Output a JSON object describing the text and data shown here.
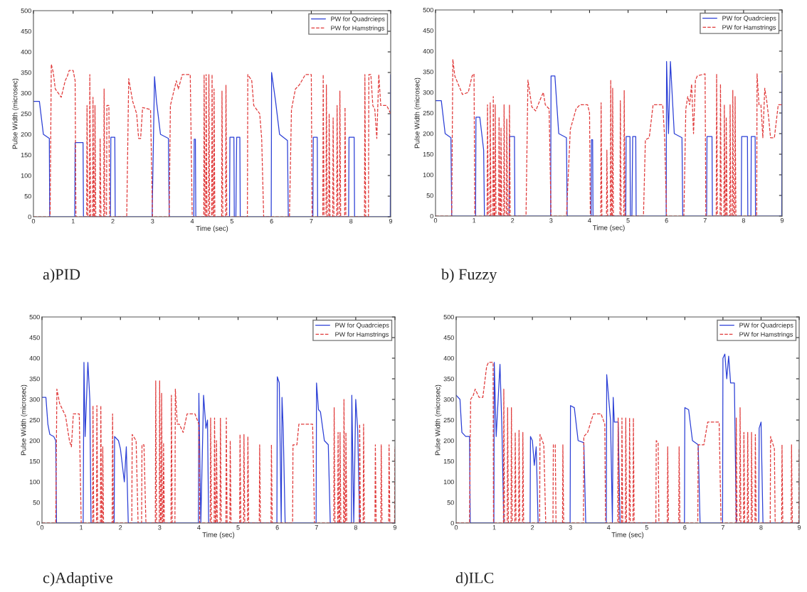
{
  "chart_data": [
    {
      "type": "line",
      "title": "a)PID",
      "xlabel": "Time (sec)",
      "ylabel": "Pulse Width (microsec)",
      "xlim": [
        0,
        9
      ],
      "ylim": [
        0,
        500
      ],
      "xticks": [
        0,
        1,
        2,
        3,
        4,
        5,
        6,
        7,
        8,
        9
      ],
      "yticks": [
        0,
        50,
        100,
        150,
        200,
        250,
        300,
        350,
        400,
        450,
        500
      ],
      "grid": false,
      "legend": "top right",
      "series": [
        {
          "name": "PW for Quadrcieps",
          "color": "#2b3fd6",
          "line_style": "solid",
          "x": [
            0,
            0.15,
            0.25,
            0.4,
            0.41,
            1.04,
            1.05,
            1.25,
            1.26,
            1.94,
            1.95,
            2.05,
            2.06,
            2.99,
            3.05,
            3.1,
            3.2,
            3.4,
            3.42,
            4.04,
            4.05,
            4.08,
            4.09,
            4.94,
            4.95,
            5.05,
            5.06,
            5.1,
            5.12,
            5.2,
            5.21,
            5.99,
            6.0,
            6.1,
            6.2,
            6.4,
            6.42,
            7.04,
            7.05,
            7.15,
            7.16,
            7.94,
            7.95,
            8.08,
            8.09,
            8.99,
            9.0
          ],
          "values": [
            280,
            280,
            200,
            190,
            0,
            0,
            180,
            180,
            0,
            0,
            193,
            193,
            0,
            0,
            340,
            280,
            200,
            190,
            0,
            0,
            188,
            188,
            0,
            0,
            193,
            193,
            0,
            0,
            193,
            193,
            0,
            0,
            350,
            280,
            200,
            185,
            0,
            0,
            193,
            193,
            0,
            0,
            193,
            193,
            0,
            0,
            345
          ]
        },
        {
          "name": "PW for Hamstrings",
          "color": "#e03a3a",
          "line_style": "dashed",
          "x": [
            0,
            0.42,
            0.45,
            0.5,
            0.55,
            0.7,
            0.8,
            0.85,
            0.9,
            1.0,
            1.05,
            1.07,
            1.34,
            1.35,
            1.37,
            1.41,
            1.42,
            1.44,
            1.49,
            1.5,
            1.52,
            1.54,
            1.55,
            1.57,
            1.67,
            1.68,
            1.7,
            1.77,
            1.78,
            1.8,
            1.84,
            1.85,
            1.9,
            1.92,
            2.35,
            2.4,
            2.5,
            2.6,
            2.65,
            2.7,
            2.75,
            2.95,
            3.0,
            3.42,
            3.45,
            3.6,
            3.65,
            3.75,
            3.95,
            4.0,
            4.29,
            4.3,
            4.32,
            4.34,
            4.35,
            4.37,
            4.41,
            4.42,
            4.44,
            4.49,
            4.5,
            4.52,
            4.54,
            4.55,
            4.57,
            4.74,
            4.75,
            4.77,
            4.84,
            4.85,
            4.87,
            5.39,
            5.4,
            5.5,
            5.55,
            5.7,
            5.75,
            5.8,
            6.45,
            6.5,
            6.6,
            6.7,
            6.85,
            7.0,
            7.02,
            7.29,
            7.3,
            7.32,
            7.37,
            7.38,
            7.4,
            7.44,
            7.45,
            7.47,
            7.54,
            7.55,
            7.57,
            7.64,
            7.65,
            7.67,
            7.71,
            7.72,
            7.74,
            7.84,
            7.85,
            7.87,
            8.34,
            8.35,
            8.37,
            8.44,
            8.45,
            8.5,
            8.55,
            8.6,
            8.65,
            8.7,
            8.75,
            8.9,
            9.0
          ],
          "values": [
            0,
            0,
            370,
            350,
            310,
            290,
            330,
            340,
            355,
            355,
            330,
            0,
            0,
            270,
            0,
            0,
            345,
            0,
            0,
            290,
            0,
            0,
            270,
            0,
            0,
            190,
            0,
            0,
            310,
            0,
            0,
            270,
            270,
            0,
            0,
            335,
            280,
            250,
            190,
            190,
            265,
            260,
            0,
            0,
            270,
            330,
            310,
            345,
            345,
            0,
            0,
            345,
            0,
            0,
            345,
            0,
            0,
            345,
            0,
            0,
            345,
            0,
            0,
            310,
            0,
            0,
            305,
            0,
            0,
            320,
            0,
            0,
            345,
            330,
            270,
            250,
            190,
            0,
            0,
            260,
            310,
            320,
            345,
            345,
            0,
            0,
            345,
            0,
            0,
            320,
            0,
            0,
            250,
            0,
            0,
            240,
            0,
            0,
            270,
            0,
            0,
            305,
            0,
            0,
            265,
            0,
            0,
            345,
            0,
            0,
            345,
            345,
            270,
            260,
            190,
            345,
            270,
            270,
            250
          ]
        }
      ]
    },
    {
      "type": "line",
      "title": "b) Fuzzy",
      "xlabel": "Time (sec)",
      "ylabel": "Pulse Width (microsec)",
      "xlim": [
        0,
        9
      ],
      "ylim": [
        0,
        500
      ],
      "xticks": [
        0,
        1,
        2,
        3,
        4,
        5,
        6,
        7,
        8,
        9
      ],
      "yticks": [
        0,
        50,
        100,
        150,
        200,
        250,
        300,
        350,
        400,
        450,
        500
      ],
      "grid": false,
      "legend": "top right",
      "series": [
        {
          "name": "PW for Quadrcieps",
          "color": "#2b3fd6",
          "line_style": "solid",
          "x": [
            0,
            0.15,
            0.25,
            0.4,
            0.42,
            1.04,
            1.05,
            1.15,
            1.25,
            1.27,
            1.91,
            1.92,
            2.05,
            2.06,
            2.99,
            3.0,
            3.1,
            3.2,
            3.4,
            3.42,
            4.04,
            4.05,
            4.08,
            4.09,
            4.94,
            4.95,
            5.05,
            5.06,
            5.1,
            5.12,
            5.2,
            5.21,
            5.99,
            6.0,
            6.05,
            6.1,
            6.2,
            6.4,
            6.42,
            7.04,
            7.05,
            7.18,
            7.19,
            7.94,
            7.95,
            8.1,
            8.11,
            8.19,
            8.2,
            8.3,
            8.31,
            8.99,
            9.0
          ],
          "values": [
            280,
            280,
            200,
            190,
            0,
            0,
            240,
            240,
            160,
            0,
            0,
            193,
            193,
            0,
            0,
            340,
            340,
            200,
            190,
            0,
            0,
            185,
            185,
            0,
            0,
            193,
            193,
            0,
            0,
            193,
            193,
            0,
            0,
            375,
            200,
            375,
            200,
            190,
            0,
            0,
            193,
            193,
            0,
            0,
            193,
            193,
            0,
            0,
            193,
            193,
            0,
            0,
            345
          ]
        },
        {
          "name": "PW for Hamstrings",
          "color": "#e03a3a",
          "line_style": "dashed",
          "x": [
            0,
            0.42,
            0.45,
            0.5,
            0.7,
            0.85,
            0.95,
            1.0,
            1.02,
            1.34,
            1.35,
            1.37,
            1.41,
            1.42,
            1.44,
            1.49,
            1.5,
            1.52,
            1.54,
            1.55,
            1.57,
            1.64,
            1.65,
            1.67,
            1.69,
            1.7,
            1.72,
            1.77,
            1.78,
            1.8,
            1.84,
            1.85,
            1.87,
            1.91,
            1.92,
            1.94,
            2.35,
            2.4,
            2.5,
            2.6,
            2.75,
            2.8,
            2.85,
            2.95,
            3.0,
            3.4,
            3.5,
            3.65,
            3.75,
            3.95,
            4.0,
            4.02,
            4.29,
            4.3,
            4.32,
            4.44,
            4.45,
            4.47,
            4.54,
            4.55,
            4.57,
            4.59,
            4.6,
            4.62,
            4.79,
            4.8,
            4.82,
            4.89,
            4.9,
            4.92,
            5.4,
            5.45,
            5.55,
            5.65,
            5.9,
            5.95,
            6.0,
            6.45,
            6.5,
            6.55,
            6.6,
            6.65,
            6.7,
            6.75,
            6.8,
            7.0,
            7.02,
            7.29,
            7.3,
            7.32,
            7.39,
            7.4,
            7.42,
            7.49,
            7.5,
            7.52,
            7.54,
            7.55,
            7.57,
            7.64,
            7.65,
            7.67,
            7.71,
            7.72,
            7.74,
            7.77,
            7.78,
            7.8,
            8.34,
            8.35,
            8.4,
            8.45,
            8.5,
            8.55,
            8.6,
            8.65,
            8.7,
            8.8,
            8.9,
            9.0
          ],
          "values": [
            0,
            0,
            380,
            340,
            295,
            300,
            340,
            345,
            0,
            0,
            270,
            0,
            0,
            275,
            0,
            0,
            290,
            0,
            0,
            270,
            0,
            0,
            240,
            0,
            0,
            215,
            0,
            0,
            270,
            0,
            0,
            235,
            0,
            0,
            270,
            0,
            0,
            330,
            265,
            255,
            290,
            300,
            270,
            260,
            0,
            0,
            210,
            260,
            270,
            270,
            250,
            0,
            0,
            275,
            0,
            0,
            160,
            0,
            0,
            330,
            0,
            0,
            310,
            0,
            0,
            280,
            0,
            0,
            305,
            0,
            0,
            185,
            190,
            270,
            270,
            190,
            0,
            0,
            260,
            290,
            270,
            320,
            200,
            330,
            340,
            345,
            0,
            0,
            345,
            0,
            0,
            320,
            0,
            0,
            270,
            0,
            0,
            240,
            0,
            0,
            270,
            0,
            0,
            305,
            0,
            0,
            290,
            0,
            0,
            345,
            270,
            270,
            190,
            310,
            280,
            240,
            190,
            190,
            270,
            270
          ]
        }
      ]
    },
    {
      "type": "line",
      "title": "c)Adaptive",
      "xlabel": "Time (sec)",
      "ylabel": "Pulse Width (microsec)",
      "xlim": [
        0,
        9
      ],
      "ylim": [
        0,
        500
      ],
      "xticks": [
        0,
        1,
        2,
        3,
        4,
        5,
        6,
        7,
        8,
        9
      ],
      "yticks": [
        0,
        50,
        100,
        150,
        200,
        250,
        300,
        350,
        400,
        450,
        500
      ],
      "grid": false,
      "legend": "top right",
      "series": [
        {
          "name": "PW for Quadrcieps",
          "color": "#2b3fd6",
          "line_style": "solid",
          "x": [
            0,
            0.1,
            0.15,
            0.2,
            0.3,
            0.35,
            0.37,
            1.05,
            1.07,
            1.1,
            1.17,
            1.22,
            1.25,
            1.84,
            1.85,
            1.95,
            2.0,
            2.1,
            2.15,
            2.2,
            3.99,
            4.0,
            4.05,
            4.12,
            4.18,
            4.22,
            4.25,
            5.99,
            6.0,
            6.05,
            6.1,
            6.12,
            6.15,
            6.2,
            6.99,
            7.0,
            7.05,
            7.1,
            7.2,
            7.3,
            7.35,
            7.89,
            7.9,
            7.95,
            8.0,
            8.05,
            8.1,
            9.0
          ],
          "values": [
            305,
            305,
            240,
            215,
            210,
            200,
            0,
            0,
            390,
            210,
            390,
            300,
            0,
            0,
            210,
            200,
            180,
            100,
            185,
            0,
            0,
            315,
            0,
            310,
            230,
            250,
            0,
            0,
            355,
            340,
            0,
            305,
            230,
            0,
            0,
            340,
            275,
            270,
            200,
            190,
            0,
            0,
            310,
            0,
            300,
            225,
            0,
            0
          ]
        },
        {
          "name": "PW for Hamstrings",
          "color": "#e03a3a",
          "line_style": "dashed",
          "x": [
            0,
            0.35,
            0.38,
            0.45,
            0.6,
            0.7,
            0.75,
            0.8,
            0.95,
            1.0,
            1.29,
            1.3,
            1.32,
            1.39,
            1.4,
            1.42,
            1.49,
            1.5,
            1.52,
            1.54,
            1.55,
            1.57,
            1.79,
            1.8,
            1.82,
            2.29,
            2.3,
            2.4,
            2.45,
            2.54,
            2.55,
            2.6,
            2.65,
            2.89,
            2.9,
            2.92,
            2.99,
            3.0,
            3.02,
            3.04,
            3.05,
            3.07,
            3.09,
            3.1,
            3.12,
            3.29,
            3.3,
            3.32,
            3.39,
            3.4,
            3.45,
            3.5,
            3.6,
            3.7,
            3.9,
            4.0,
            4.02,
            4.29,
            4.3,
            4.32,
            4.39,
            4.4,
            4.42,
            4.44,
            4.45,
            4.47,
            4.54,
            4.55,
            4.57,
            4.69,
            4.7,
            4.72,
            4.79,
            4.8,
            4.82,
            5.04,
            5.05,
            5.07,
            5.14,
            5.15,
            5.17,
            5.24,
            5.25,
            5.27,
            5.54,
            5.55,
            5.57,
            5.84,
            5.85,
            5.87,
            6.39,
            6.4,
            6.5,
            6.55,
            6.9,
            6.95,
            7.44,
            7.45,
            7.47,
            7.54,
            7.55,
            7.57,
            7.59,
            7.6,
            7.62,
            7.69,
            7.7,
            7.72,
            7.74,
            7.75,
            7.77,
            8.09,
            8.1,
            8.12,
            8.19,
            8.2,
            8.22,
            8.49,
            8.5,
            8.52,
            8.64,
            8.65,
            8.67,
            8.84,
            8.85,
            8.87,
            8.99,
            9.0
          ],
          "values": [
            0,
            0,
            325,
            290,
            260,
            200,
            185,
            265,
            265,
            0,
            0,
            285,
            0,
            0,
            285,
            0,
            0,
            285,
            0,
            0,
            185,
            0,
            0,
            265,
            0,
            0,
            215,
            200,
            0,
            0,
            190,
            190,
            0,
            0,
            345,
            0,
            0,
            345,
            0,
            0,
            315,
            0,
            0,
            195,
            0,
            0,
            310,
            0,
            0,
            325,
            240,
            240,
            220,
            265,
            265,
            240,
            0,
            0,
            255,
            0,
            0,
            255,
            0,
            0,
            200,
            0,
            0,
            255,
            0,
            0,
            255,
            0,
            0,
            200,
            0,
            0,
            215,
            0,
            0,
            215,
            0,
            0,
            210,
            0,
            0,
            190,
            0,
            0,
            190,
            0,
            0,
            190,
            190,
            240,
            240,
            0,
            0,
            280,
            0,
            0,
            220,
            0,
            0,
            220,
            0,
            0,
            300,
            0,
            0,
            220,
            0,
            0,
            240,
            0,
            0,
            240,
            0,
            0,
            190,
            0,
            0,
            190,
            0,
            0,
            190,
            0,
            0,
            185
          ]
        }
      ]
    },
    {
      "type": "line",
      "title": "d)ILC",
      "xlabel": "Time (sec)",
      "ylabel": "Pulse Width (microsec)",
      "xlim": [
        0,
        9
      ],
      "ylim": [
        0,
        500
      ],
      "xticks": [
        0,
        1,
        2,
        3,
        4,
        5,
        6,
        7,
        8,
        9
      ],
      "yticks": [
        0,
        50,
        100,
        150,
        200,
        250,
        300,
        350,
        400,
        450,
        500
      ],
      "grid": false,
      "legend": "top right",
      "series": [
        {
          "name": "PW for Quadrcieps",
          "color": "#2b3fd6",
          "line_style": "solid",
          "x": [
            0,
            0.1,
            0.15,
            0.25,
            0.35,
            0.37,
            0.99,
            1.0,
            1.05,
            1.15,
            1.2,
            1.25,
            1.94,
            1.95,
            2.0,
            2.05,
            2.1,
            2.15,
            2.99,
            3.0,
            3.1,
            3.2,
            3.35,
            3.4,
            3.94,
            3.95,
            4.05,
            4.1,
            4.12,
            4.15,
            4.25,
            4.3,
            5.99,
            6.0,
            6.1,
            6.2,
            6.35,
            6.4,
            6.99,
            7.0,
            7.05,
            7.1,
            7.15,
            7.2,
            7.3,
            7.35,
            7.94,
            7.95,
            8.0,
            8.05,
            9.0
          ],
          "values": [
            310,
            300,
            220,
            210,
            210,
            0,
            0,
            390,
            210,
            385,
            230,
            0,
            0,
            210,
            200,
            140,
            185,
            0,
            0,
            285,
            280,
            200,
            195,
            0,
            0,
            360,
            250,
            0,
            305,
            245,
            245,
            0,
            0,
            280,
            275,
            200,
            190,
            0,
            0,
            400,
            410,
            350,
            405,
            340,
            340,
            0,
            0,
            230,
            245,
            0,
            0
          ]
        },
        {
          "name": "PW for Hamstrings",
          "color": "#e03a3a",
          "line_style": "dashed",
          "x": [
            0,
            0.35,
            0.38,
            0.45,
            0.5,
            0.6,
            0.7,
            0.8,
            0.85,
            0.97,
            0.98,
            1.24,
            1.25,
            1.27,
            1.34,
            1.35,
            1.37,
            1.44,
            1.45,
            1.47,
            1.54,
            1.55,
            1.57,
            1.64,
            1.65,
            1.67,
            1.74,
            1.75,
            1.77,
            2.19,
            2.2,
            2.3,
            2.35,
            2.54,
            2.55,
            2.6,
            2.62,
            2.79,
            2.8,
            2.82,
            3.34,
            3.35,
            3.45,
            3.6,
            3.8,
            3.9,
            3.92,
            4.24,
            4.25,
            4.27,
            4.34,
            4.35,
            4.37,
            4.44,
            4.45,
            4.47,
            4.54,
            4.55,
            4.57,
            4.64,
            4.65,
            4.67,
            5.24,
            5.25,
            5.3,
            5.32,
            5.54,
            5.55,
            5.57,
            5.84,
            5.85,
            5.87,
            6.34,
            6.35,
            6.5,
            6.6,
            6.9,
            6.95,
            7.34,
            7.35,
            7.37,
            7.44,
            7.45,
            7.47,
            7.54,
            7.55,
            7.57,
            7.64,
            7.65,
            7.67,
            7.74,
            7.75,
            7.77,
            7.84,
            7.85,
            7.87,
            8.24,
            8.25,
            8.35,
            8.37,
            8.54,
            8.55,
            8.57,
            8.79,
            8.8,
            8.82,
            8.99,
            9.0
          ],
          "values": [
            0,
            0,
            300,
            310,
            325,
            305,
            305,
            380,
            390,
            390,
            0,
            0,
            325,
            0,
            0,
            280,
            0,
            0,
            280,
            0,
            0,
            220,
            0,
            0,
            225,
            0,
            0,
            220,
            0,
            0,
            215,
            190,
            0,
            0,
            190,
            190,
            0,
            0,
            190,
            0,
            0,
            210,
            220,
            265,
            265,
            240,
            0,
            0,
            255,
            0,
            0,
            255,
            0,
            0,
            255,
            0,
            0,
            255,
            0,
            0,
            255,
            0,
            0,
            200,
            195,
            0,
            0,
            185,
            0,
            0,
            185,
            0,
            0,
            190,
            190,
            245,
            245,
            0,
            0,
            255,
            0,
            0,
            280,
            0,
            0,
            220,
            0,
            0,
            220,
            0,
            0,
            220,
            0,
            0,
            215,
            0,
            0,
            210,
            180,
            0,
            0,
            190,
            0,
            0,
            190,
            0,
            0,
            180
          ]
        }
      ]
    }
  ]
}
